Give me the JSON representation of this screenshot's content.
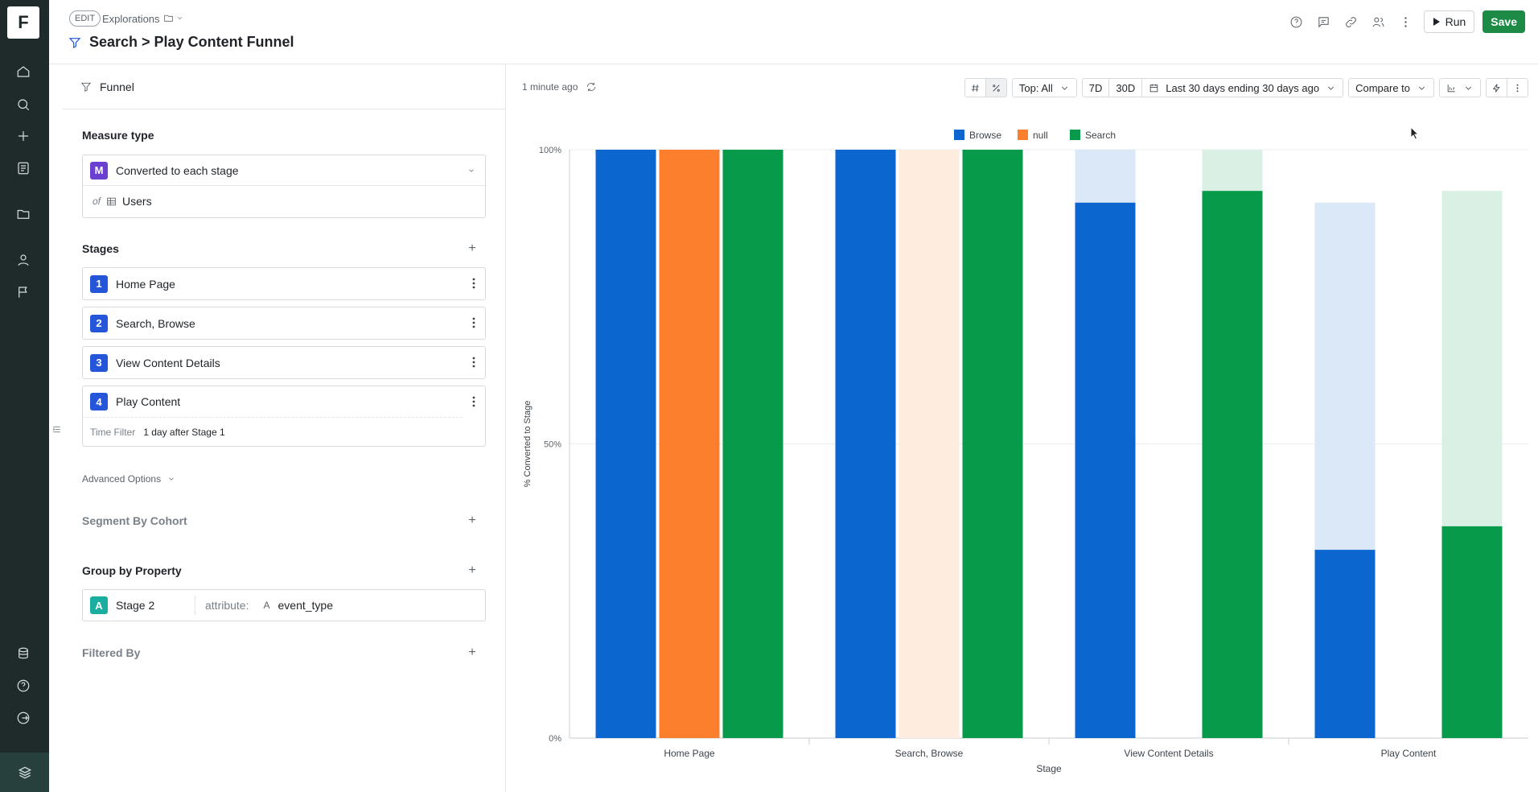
{
  "rail": {
    "logo_letter": "F",
    "icons": [
      "home-icon",
      "search-icon",
      "plus-icon",
      "reports-icon",
      "folder-icon",
      "user-icon",
      "flag-icon"
    ],
    "bottom_icons": [
      "data-icon",
      "help-icon",
      "logout-icon"
    ]
  },
  "header": {
    "mode": "EDIT",
    "breadcrumb": "Explorations",
    "title": "Search > Play Content Funnel",
    "run_label": "Run",
    "save_label": "Save",
    "accent": "#1d8a46"
  },
  "panel": {
    "type_label": "Funnel",
    "measure": {
      "section": "Measure type",
      "badge": "M",
      "value": "Converted to each stage",
      "of_label": "of",
      "of_value": "Users"
    },
    "stages_section": "Stages",
    "stages": [
      {
        "num": "1",
        "label": "Home Page"
      },
      {
        "num": "2",
        "label": "Search, Browse"
      },
      {
        "num": "3",
        "label": "View Content Details"
      },
      {
        "num": "4",
        "label": "Play Content"
      }
    ],
    "time_filter": {
      "label": "Time Filter",
      "value": "1 day after Stage 1"
    },
    "advanced": "Advanced Options",
    "segment": "Segment By Cohort",
    "group_section": "Group by Property",
    "group": {
      "badge": "A",
      "stage": "Stage 2",
      "attr_label": "attribute:",
      "attr_value": "event_type"
    },
    "filtered": "Filtered By"
  },
  "toolbar": {
    "updated": "1 minute ago",
    "top": "Top: All",
    "d7": "7D",
    "d30": "30D",
    "range": "Last 30 days ending 30 days ago",
    "compare": "Compare to"
  },
  "chart_data": {
    "type": "bar",
    "categories": [
      "Home Page",
      "Search, Browse",
      "View Content Details",
      "Play Content"
    ],
    "series": [
      {
        "name": "Browse",
        "color": "#0b66d0",
        "values": [
          100,
          100,
          91,
          32
        ],
        "potential": [
          100,
          100,
          100,
          91
        ]
      },
      {
        "name": "null",
        "color": "#fb7f2c",
        "values": [
          100,
          0,
          0,
          0
        ],
        "potential": [
          100,
          100,
          0,
          0
        ]
      },
      {
        "name": "Search",
        "color": "#079a4b",
        "values": [
          100,
          100,
          93,
          36
        ],
        "potential": [
          100,
          100,
          100,
          93
        ]
      }
    ],
    "yticks": [
      "0%",
      "50%",
      "100%"
    ],
    "ylim": [
      0,
      100
    ],
    "ylabel": "% Converted to Stage",
    "xlabel": "Stage",
    "legend_position": "top"
  }
}
